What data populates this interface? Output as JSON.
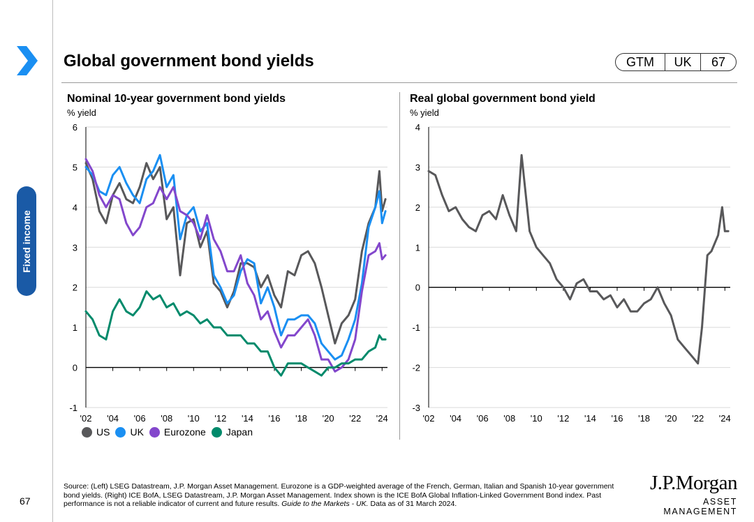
{
  "header": {
    "title": "Global government bond yields",
    "badge": [
      "GTM",
      "UK",
      "67"
    ]
  },
  "sidebar": {
    "section": "Fixed income",
    "page_number": "67"
  },
  "colors": {
    "us": "#58585a",
    "uk": "#1a8ff2",
    "eurozone": "#8347cc",
    "japan": "#008a6b",
    "real": "#58585a",
    "tab": "#1a5aa6"
  },
  "chart_data": [
    {
      "type": "line",
      "title": "Nominal 10-year government bond yields",
      "ylabel": "% yield",
      "xlabel": "",
      "xlim": [
        2002,
        2024.4
      ],
      "ylim": [
        -1,
        6
      ],
      "yticks": [
        "-1",
        "0",
        "1",
        "2",
        "3",
        "4",
        "5",
        "6"
      ],
      "xticks": [
        "'02",
        "'04",
        "'06",
        "'08",
        "'10",
        "'12",
        "'14",
        "'16",
        "'18",
        "'20",
        "'22",
        "'24"
      ],
      "x": [
        2002.0,
        2002.5,
        2003.0,
        2003.5,
        2004.0,
        2004.5,
        2005.0,
        2005.5,
        2006.0,
        2006.5,
        2007.0,
        2007.5,
        2008.0,
        2008.5,
        2009.0,
        2009.5,
        2010.0,
        2010.5,
        2011.0,
        2011.5,
        2012.0,
        2012.5,
        2013.0,
        2013.5,
        2014.0,
        2014.5,
        2015.0,
        2015.5,
        2016.0,
        2016.5,
        2017.0,
        2017.5,
        2018.0,
        2018.5,
        2019.0,
        2019.5,
        2020.0,
        2020.5,
        2021.0,
        2021.5,
        2022.0,
        2022.5,
        2023.0,
        2023.5,
        2023.8,
        2024.0,
        2024.25
      ],
      "series": [
        {
          "name": "US",
          "values": [
            5.1,
            4.7,
            3.9,
            3.6,
            4.3,
            4.6,
            4.2,
            4.1,
            4.5,
            5.1,
            4.7,
            5.0,
            3.7,
            4.0,
            2.3,
            3.6,
            3.7,
            3.0,
            3.4,
            2.1,
            1.9,
            1.5,
            1.9,
            2.6,
            2.6,
            2.5,
            2.0,
            2.3,
            1.8,
            1.5,
            2.4,
            2.3,
            2.8,
            2.9,
            2.6,
            2.0,
            1.3,
            0.6,
            1.1,
            1.3,
            1.7,
            2.9,
            3.6,
            4.0,
            4.9,
            3.9,
            4.2
          ]
        },
        {
          "name": "UK",
          "values": [
            5.0,
            4.8,
            4.4,
            4.3,
            4.8,
            5.0,
            4.6,
            4.3,
            4.1,
            4.7,
            4.9,
            5.3,
            4.5,
            4.8,
            3.2,
            3.8,
            4.0,
            3.4,
            3.6,
            2.3,
            2.0,
            1.6,
            1.8,
            2.4,
            2.7,
            2.6,
            1.6,
            2.0,
            1.5,
            0.8,
            1.2,
            1.2,
            1.3,
            1.3,
            1.1,
            0.6,
            0.4,
            0.2,
            0.3,
            0.7,
            1.2,
            2.1,
            3.5,
            4.0,
            4.4,
            3.6,
            3.9
          ]
        },
        {
          "name": "Eurozone",
          "values": [
            5.2,
            4.9,
            4.3,
            4.0,
            4.3,
            4.2,
            3.6,
            3.3,
            3.5,
            4.0,
            4.1,
            4.5,
            4.2,
            4.5,
            3.9,
            3.8,
            3.6,
            3.2,
            3.8,
            3.2,
            2.9,
            2.4,
            2.4,
            2.8,
            2.1,
            1.8,
            1.2,
            1.4,
            0.9,
            0.5,
            0.8,
            0.8,
            1.0,
            1.2,
            0.8,
            0.2,
            0.2,
            -0.1,
            0.0,
            0.2,
            0.7,
            1.9,
            2.8,
            2.9,
            3.1,
            2.7,
            2.8
          ]
        },
        {
          "name": "Japan",
          "values": [
            1.4,
            1.2,
            0.8,
            0.7,
            1.4,
            1.7,
            1.4,
            1.3,
            1.5,
            1.9,
            1.7,
            1.8,
            1.5,
            1.6,
            1.3,
            1.4,
            1.3,
            1.1,
            1.2,
            1.0,
            1.0,
            0.8,
            0.8,
            0.8,
            0.6,
            0.6,
            0.4,
            0.4,
            0.0,
            -0.2,
            0.1,
            0.1,
            0.1,
            0.0,
            -0.1,
            -0.2,
            0.0,
            0.0,
            0.1,
            0.1,
            0.2,
            0.2,
            0.4,
            0.5,
            0.8,
            0.7,
            0.7
          ]
        }
      ],
      "legend": [
        "US",
        "UK",
        "Eurozone",
        "Japan"
      ],
      "legend_position": "bottom-left"
    },
    {
      "type": "line",
      "title": "Real global government bond yield",
      "ylabel": "% yield",
      "xlabel": "",
      "xlim": [
        2002,
        2024.4
      ],
      "ylim": [
        -3,
        4
      ],
      "yticks": [
        "-3",
        "-2",
        "-1",
        "0",
        "1",
        "2",
        "3",
        "4"
      ],
      "xticks": [
        "'02",
        "'04",
        "'06",
        "'08",
        "'10",
        "'12",
        "'14",
        "'16",
        "'18",
        "'20",
        "'22",
        "'24"
      ],
      "x": [
        2002.0,
        2002.5,
        2003.0,
        2003.5,
        2004.0,
        2004.5,
        2005.0,
        2005.5,
        2006.0,
        2006.5,
        2007.0,
        2007.5,
        2008.0,
        2008.5,
        2008.9,
        2009.5,
        2010.0,
        2010.5,
        2011.0,
        2011.5,
        2012.0,
        2012.5,
        2013.0,
        2013.5,
        2014.0,
        2014.5,
        2015.0,
        2015.5,
        2016.0,
        2016.5,
        2017.0,
        2017.5,
        2018.0,
        2018.5,
        2019.0,
        2019.5,
        2020.0,
        2020.5,
        2021.0,
        2021.5,
        2022.0,
        2022.3,
        2022.7,
        2023.0,
        2023.5,
        2023.8,
        2024.0,
        2024.25
      ],
      "series": [
        {
          "name": "Real global government bond yield",
          "values": [
            2.9,
            2.8,
            2.3,
            1.9,
            2.0,
            1.7,
            1.5,
            1.4,
            1.8,
            1.9,
            1.7,
            2.3,
            1.8,
            1.4,
            3.3,
            1.4,
            1.0,
            0.8,
            0.6,
            0.2,
            0.0,
            -0.3,
            0.1,
            0.2,
            -0.1,
            -0.1,
            -0.3,
            -0.2,
            -0.5,
            -0.3,
            -0.6,
            -0.6,
            -0.4,
            -0.3,
            0.0,
            -0.4,
            -0.7,
            -1.3,
            -1.5,
            -1.7,
            -1.9,
            -1.0,
            0.8,
            0.9,
            1.3,
            2.0,
            1.4,
            1.4
          ]
        }
      ]
    }
  ],
  "footer": {
    "source_main": "Source: (Left) LSEG Datastream, J.P. Morgan Asset Management. Eurozone is a GDP-weighted average of the French, German, Italian and Spanish 10-year government bond yields. (Right) ICE BofA, LSEG Datastream, J.P. Morgan Asset Management. Index shown is the ICE BofA Global Inflation-Linked Government Bond index. Past performance is not a reliable indicator of current and future results.",
    "source_italic": "Guide to the Markets - UK.",
    "source_date": "Data as of 31 March 2024.",
    "logo_main": "J.P.Morgan",
    "logo_sub": "ASSET MANAGEMENT"
  }
}
